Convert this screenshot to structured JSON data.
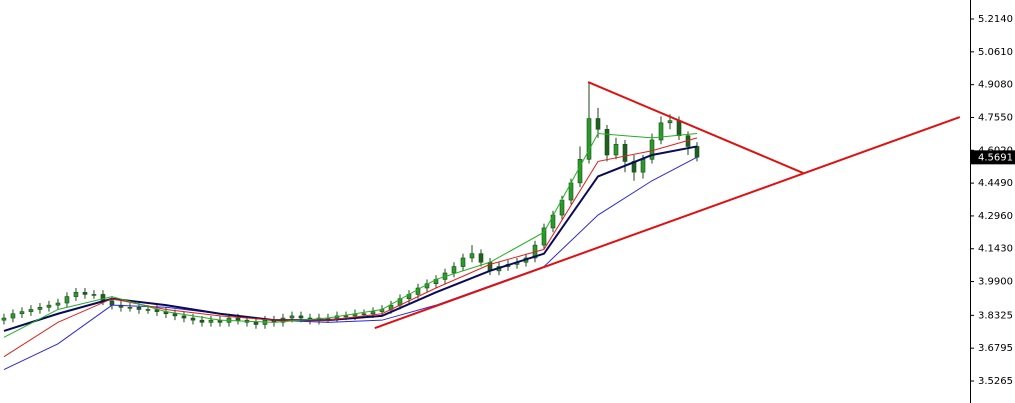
{
  "chart_data": {
    "type": "candlestick",
    "xlim": [
      -0.44,
      107.33
    ],
    "ylim": [
      3.4239,
      5.3026
    ],
    "yticks": [
      {
        "value": 5.214,
        "label": "5.2140"
      },
      {
        "value": 5.061,
        "label": "5.0610"
      },
      {
        "value": 4.908,
        "label": "4.9080"
      },
      {
        "value": 4.755,
        "label": "4.7550"
      },
      {
        "value": 4.602,
        "label": "4.6020"
      },
      {
        "value": 4.449,
        "label": "4.4490"
      },
      {
        "value": 4.296,
        "label": "4.2960"
      },
      {
        "value": 4.143,
        "label": "4.1430"
      },
      {
        "value": 3.99,
        "label": "3.9900"
      },
      {
        "value": 3.8325,
        "label": "3.8325"
      },
      {
        "value": 3.6795,
        "label": "3.6795"
      },
      {
        "value": 3.5265,
        "label": "3.5265"
      }
    ],
    "up_color": "#2a9a2a",
    "down_color": "#1f5f1f",
    "open": [
      3.81,
      3.82,
      3.84,
      3.85,
      3.86,
      3.87,
      3.88,
      3.89,
      3.92,
      3.94,
      3.93,
      3.93,
      3.9,
      3.88,
      3.87,
      3.87,
      3.86,
      3.86,
      3.85,
      3.84,
      3.83,
      3.82,
      3.81,
      3.8,
      3.81,
      3.8,
      3.82,
      3.81,
      3.8,
      3.79,
      3.81,
      3.8,
      3.82,
      3.83,
      3.82,
      3.81,
      3.82,
      3.82,
      3.83,
      3.83,
      3.84,
      3.84,
      3.85,
      3.86,
      3.88,
      3.91,
      3.93,
      3.96,
      3.98,
      4.0,
      4.03,
      4.06,
      4.1,
      4.12,
      4.08,
      4.04,
      4.06,
      4.07,
      4.08,
      4.1,
      4.16,
      4.24,
      4.3,
      4.37,
      4.45,
      4.56,
      4.75,
      4.7,
      4.58,
      4.63,
      4.55,
      4.5,
      4.56,
      4.65,
      4.73,
      4.74,
      4.67,
      4.62
    ],
    "high": [
      3.84,
      3.86,
      3.87,
      3.88,
      3.89,
      3.9,
      3.91,
      3.94,
      3.96,
      3.96,
      3.95,
      3.95,
      3.92,
      3.9,
      3.89,
      3.89,
      3.88,
      3.88,
      3.87,
      3.86,
      3.85,
      3.84,
      3.83,
      3.83,
      3.83,
      3.84,
      3.84,
      3.83,
      3.82,
      3.83,
      3.83,
      3.84,
      3.85,
      3.85,
      3.84,
      3.84,
      3.84,
      3.85,
      3.85,
      3.86,
      3.86,
      3.87,
      3.88,
      3.9,
      3.93,
      3.95,
      3.98,
      4.0,
      4.02,
      4.05,
      4.08,
      4.12,
      4.16,
      4.14,
      4.1,
      4.08,
      4.09,
      4.1,
      4.12,
      4.18,
      4.26,
      4.32,
      4.39,
      4.47,
      4.62,
      4.92,
      4.8,
      4.72,
      4.66,
      4.65,
      4.58,
      4.58,
      4.68,
      4.76,
      4.77,
      4.76,
      4.69,
      4.64
    ],
    "low": [
      3.79,
      3.8,
      3.82,
      3.83,
      3.84,
      3.85,
      3.86,
      3.87,
      3.9,
      3.91,
      3.91,
      3.88,
      3.86,
      3.85,
      3.85,
      3.84,
      3.84,
      3.83,
      3.82,
      3.81,
      3.8,
      3.79,
      3.78,
      3.78,
      3.78,
      3.78,
      3.79,
      3.78,
      3.77,
      3.77,
      3.78,
      3.78,
      3.8,
      3.8,
      3.79,
      3.79,
      3.8,
      3.8,
      3.81,
      3.81,
      3.82,
      3.82,
      3.83,
      3.84,
      3.86,
      3.89,
      3.91,
      3.94,
      3.96,
      3.98,
      4.01,
      4.04,
      4.08,
      4.06,
      4.02,
      4.02,
      4.04,
      4.05,
      4.06,
      4.08,
      4.14,
      4.22,
      4.28,
      4.35,
      4.43,
      4.54,
      4.66,
      4.55,
      4.56,
      4.5,
      4.46,
      4.47,
      4.54,
      4.63,
      4.7,
      4.65,
      4.58,
      4.55
    ],
    "close": [
      3.82,
      3.84,
      3.85,
      3.86,
      3.87,
      3.88,
      3.89,
      3.92,
      3.94,
      3.93,
      3.93,
      3.9,
      3.88,
      3.87,
      3.87,
      3.86,
      3.86,
      3.85,
      3.84,
      3.83,
      3.82,
      3.81,
      3.8,
      3.81,
      3.8,
      3.82,
      3.81,
      3.8,
      3.79,
      3.81,
      3.8,
      3.82,
      3.83,
      3.82,
      3.81,
      3.82,
      3.82,
      3.83,
      3.83,
      3.84,
      3.84,
      3.85,
      3.86,
      3.88,
      3.91,
      3.93,
      3.96,
      3.98,
      4.0,
      4.03,
      4.06,
      4.1,
      4.12,
      4.08,
      4.04,
      4.06,
      4.07,
      4.08,
      4.1,
      4.16,
      4.24,
      4.3,
      4.37,
      4.45,
      4.56,
      4.75,
      4.7,
      4.58,
      4.63,
      4.55,
      4.5,
      4.56,
      4.65,
      4.73,
      4.74,
      4.67,
      4.62,
      4.57
    ],
    "indicator_x": [
      0,
      6,
      12,
      18,
      24,
      30,
      36,
      42,
      48,
      54,
      60,
      66,
      72,
      77
    ],
    "indicators": [
      {
        "color": "#2a2ad8",
        "width": 1,
        "values": [
          3.58,
          3.7,
          3.88,
          3.87,
          3.84,
          3.81,
          3.8,
          3.81,
          3.88,
          3.97,
          4.06,
          4.3,
          4.46,
          4.57
        ]
      },
      {
        "color": "#0a0a5a",
        "width": 2,
        "values": [
          3.76,
          3.84,
          3.91,
          3.88,
          3.84,
          3.81,
          3.81,
          3.83,
          3.94,
          4.04,
          4.12,
          4.48,
          4.58,
          4.62
        ]
      },
      {
        "color": "#e02020",
        "width": 1,
        "values": [
          3.64,
          3.8,
          3.91,
          3.86,
          3.83,
          3.81,
          3.81,
          3.84,
          3.96,
          4.07,
          4.14,
          4.55,
          4.6,
          4.66
        ]
      },
      {
        "color": "#22b022",
        "width": 1,
        "values": [
          3.73,
          3.86,
          3.92,
          3.85,
          3.81,
          3.8,
          3.82,
          3.86,
          4.0,
          4.08,
          4.22,
          4.68,
          4.66,
          4.68
        ]
      }
    ],
    "trendline_color": "#e01010",
    "trendlines": [
      {
        "x": [
          64.9,
          88.8
        ],
        "values": [
          4.92,
          4.496
        ]
      },
      {
        "x": [
          41.2,
          106.2
        ],
        "values": [
          3.773,
          4.757
        ]
      }
    ],
    "last_price": {
      "value": 4.5691,
      "label": "4.5691"
    }
  }
}
